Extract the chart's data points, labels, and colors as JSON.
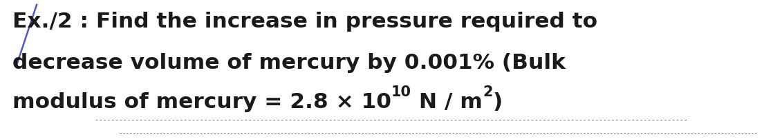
{
  "background_color": "#ffffff",
  "text_color": "#1a1a1a",
  "line1": "Ex./2 : Find the increase in pressure required to",
  "line2": "decrease volume of mercury by 0.001% (Bulk",
  "line3_main": "modulus of mercury = 2.8 × 10",
  "line3_sup1": "10",
  "line3_mid": " N / m",
  "line3_sup2": "2",
  "line3_end": ")",
  "font_size": 22.5,
  "sup_font_size": 15,
  "fig_width": 11.05,
  "fig_height": 2.02,
  "dpi": 100,
  "dash_color": "#666666",
  "slash_color": "#5555bb"
}
